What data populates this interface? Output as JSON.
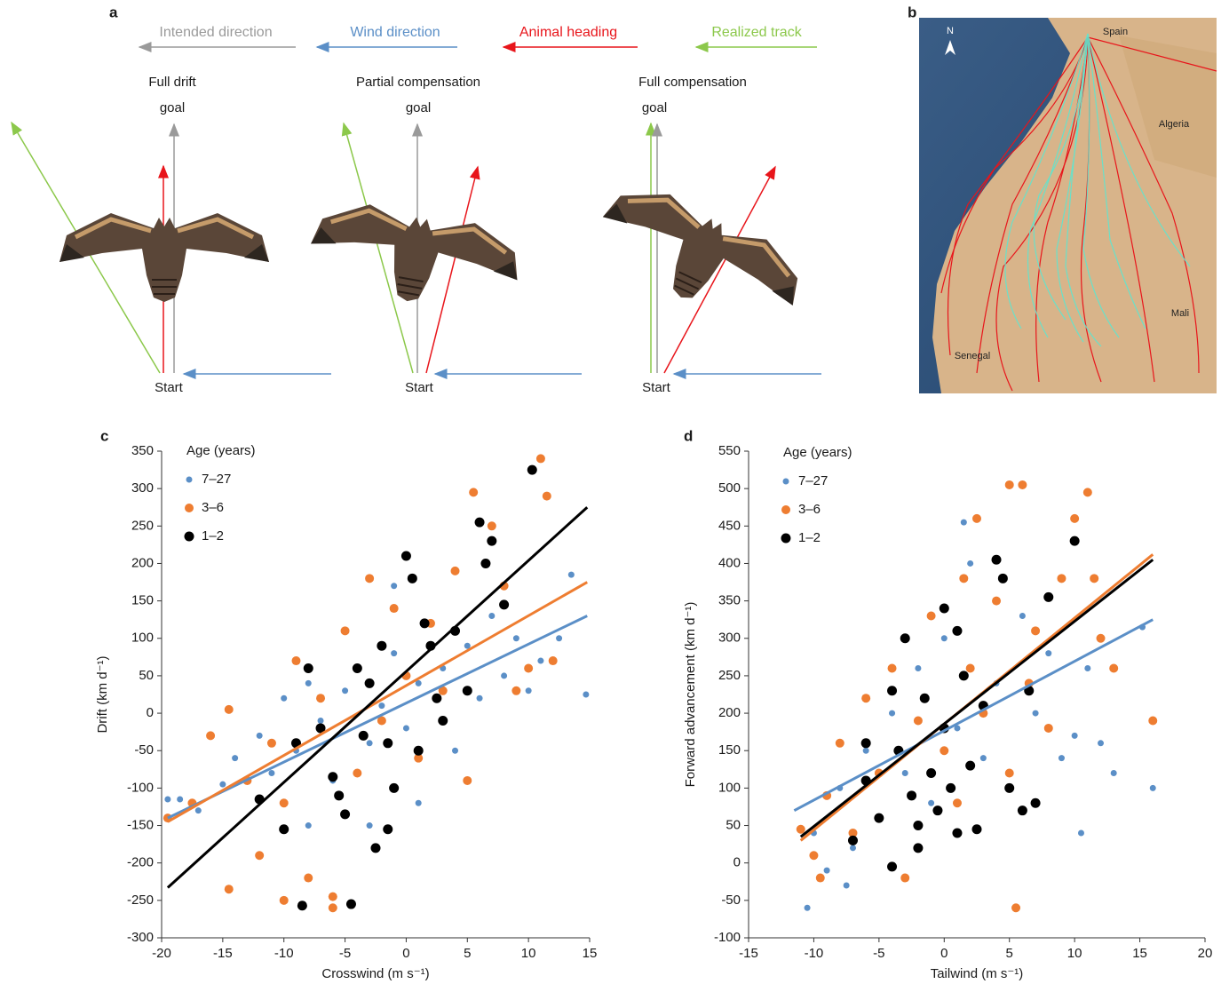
{
  "panel_a": {
    "label": "a",
    "legend": [
      "Intended direction",
      "Wind direction",
      "Animal heading",
      "Realized track"
    ],
    "scenarios": [
      {
        "title": "Full drift",
        "goal": "goal",
        "start": "Start"
      },
      {
        "title": "Partial compensation",
        "goal": "goal",
        "start": "Start"
      },
      {
        "title": "Full compensation",
        "goal": "goal",
        "start": "Start"
      }
    ]
  },
  "panel_b": {
    "label": "b",
    "north": "N",
    "places": [
      "Spain",
      "Algeria",
      "Mali",
      "Senegal"
    ]
  },
  "chart_data": [
    {
      "type": "scatter",
      "panel_label": "c",
      "x_label": "Crosswind (m s⁻¹)",
      "y_label": "Drift (km d⁻¹)",
      "legend_title": "Age (years)",
      "xlim": [
        -20,
        15
      ],
      "xticks": [
        -20,
        -15,
        -10,
        -5,
        0,
        5,
        10,
        15
      ],
      "ylim": [
        -300,
        350
      ],
      "yticks": [
        -300,
        -250,
        -200,
        -150,
        -100,
        -50,
        0,
        50,
        100,
        150,
        200,
        250,
        300,
        350
      ],
      "series": [
        {
          "name": "7–27",
          "color": "#5b8fc7",
          "x": [
            -19.5,
            -18.5,
            -17,
            -15,
            -14,
            -12,
            -11,
            -10,
            -9,
            -8,
            -7,
            -6,
            -5,
            -4,
            -3,
            -2,
            -1,
            0,
            1,
            2,
            3,
            4,
            5,
            6,
            7,
            8,
            9,
            10,
            11,
            12.5,
            13.5,
            14.7,
            -8,
            -3,
            1,
            -1
          ],
          "y": [
            -115,
            -115,
            -130,
            -95,
            -60,
            -30,
            -80,
            20,
            -50,
            40,
            -10,
            -90,
            30,
            60,
            -40,
            10,
            80,
            -20,
            40,
            120,
            60,
            -50,
            90,
            20,
            130,
            50,
            100,
            30,
            70,
            100,
            185,
            25,
            -150,
            -150,
            -120,
            170
          ],
          "fit": {
            "x": [
              -19.5,
              14.8
            ],
            "y": [
              -140,
              130
            ]
          }
        },
        {
          "name": "3–6",
          "color": "#ee7d31",
          "x": [
            -19.5,
            -17.5,
            -16,
            -14.5,
            -14.5,
            -13,
            -12,
            -11,
            -10,
            -9,
            -8,
            -7,
            -6,
            -5,
            -4,
            -3,
            -2,
            -1,
            0,
            1,
            2,
            3,
            4,
            5,
            5.5,
            7,
            8,
            9,
            10,
            11,
            11.5,
            12,
            -6,
            -10
          ],
          "y": [
            -140,
            -120,
            -30,
            -235,
            5,
            -90,
            -190,
            -40,
            -120,
            70,
            -220,
            20,
            -260,
            110,
            -80,
            180,
            -10,
            140,
            50,
            -60,
            120,
            30,
            190,
            -90,
            295,
            250,
            170,
            30,
            60,
            340,
            290,
            70,
            -245,
            -250
          ],
          "fit": {
            "x": [
              -19.5,
              14.8
            ],
            "y": [
              -145,
              175
            ]
          }
        },
        {
          "name": "1–2",
          "color": "#000000",
          "x": [
            -12,
            -10,
            -9,
            -8.5,
            -8,
            -7,
            -6,
            -5.5,
            -5,
            -4.5,
            -4,
            -3.5,
            -3,
            -2.5,
            -2,
            -1.5,
            -1,
            0,
            0.5,
            1,
            1.5,
            2,
            2.5,
            3,
            4,
            5,
            6,
            6.5,
            7,
            8,
            10.3,
            -1.5
          ],
          "y": [
            -115,
            -155,
            -40,
            -257,
            60,
            -20,
            -85,
            -110,
            -135,
            -255,
            60,
            -30,
            40,
            -180,
            90,
            -40,
            -100,
            210,
            180,
            -50,
            120,
            90,
            20,
            -10,
            110,
            30,
            255,
            200,
            230,
            145,
            325,
            -155
          ],
          "fit": {
            "x": [
              -19.5,
              14.8
            ],
            "y": [
              -233,
              275
            ]
          }
        }
      ]
    },
    {
      "type": "scatter",
      "panel_label": "d",
      "x_label": "Tailwind (m s⁻¹)",
      "y_label": "Forward advancement (km d⁻¹)",
      "legend_title": "Age (years)",
      "xlim": [
        -15,
        20
      ],
      "xticks": [
        -15,
        -10,
        -5,
        0,
        5,
        10,
        15,
        20
      ],
      "ylim": [
        -100,
        550
      ],
      "yticks": [
        -100,
        -50,
        0,
        50,
        100,
        150,
        200,
        250,
        300,
        350,
        400,
        450,
        500,
        550
      ],
      "series": [
        {
          "name": "7–27",
          "color": "#5b8fc7",
          "x": [
            -10.5,
            -10,
            -9,
            -8,
            -7.5,
            -7,
            -6,
            -5,
            -4,
            -3,
            -2,
            -1,
            0,
            1,
            2,
            3,
            4,
            5,
            6,
            7,
            8,
            9,
            10,
            10.5,
            11,
            12,
            13,
            15.2,
            16,
            1.5
          ],
          "y": [
            -60,
            40,
            -10,
            100,
            -30,
            20,
            150,
            60,
            200,
            120,
            260,
            80,
            300,
            180,
            400,
            140,
            240,
            100,
            330,
            200,
            280,
            140,
            170,
            40,
            260,
            160,
            120,
            315,
            100,
            455
          ],
          "fit": {
            "x": [
              -11.5,
              16
            ],
            "y": [
              70,
              325
            ]
          }
        },
        {
          "name": "3–6",
          "color": "#ee7d31",
          "x": [
            -11,
            -10,
            -9.5,
            -9,
            -8,
            -7,
            -6,
            -5,
            -4,
            -3,
            -2,
            -1,
            0,
            1,
            1.5,
            2,
            2.5,
            3,
            4,
            5,
            5,
            6,
            6.5,
            7,
            8,
            9,
            10,
            11,
            11.5,
            12,
            16,
            5.5,
            13
          ],
          "y": [
            45,
            10,
            -20,
            90,
            160,
            40,
            220,
            120,
            260,
            -20,
            190,
            330,
            150,
            80,
            380,
            260,
            460,
            200,
            350,
            505,
            120,
            505,
            240,
            310,
            180,
            380,
            460,
            495,
            380,
            300,
            190,
            -60,
            260
          ],
          "fit": {
            "x": [
              -11,
              16
            ],
            "y": [
              30,
              412
            ]
          }
        },
        {
          "name": "1–2",
          "color": "#000000",
          "x": [
            -7,
            -6,
            -5,
            -4,
            -4,
            -3.5,
            -3,
            -2.5,
            -2,
            -1.5,
            -1,
            -0.5,
            0,
            0,
            0.5,
            1,
            1.5,
            2,
            2.5,
            3,
            4,
            4.5,
            5,
            6,
            6.5,
            7,
            8,
            10,
            -6,
            -2,
            1
          ],
          "y": [
            30,
            110,
            60,
            -5,
            230,
            150,
            300,
            90,
            50,
            220,
            120,
            70,
            340,
            180,
            100,
            40,
            250,
            130,
            45,
            210,
            405,
            380,
            100,
            70,
            230,
            80,
            355,
            430,
            160,
            20,
            310
          ],
          "fit": {
            "x": [
              -11,
              16
            ],
            "y": [
              35,
              405
            ]
          }
        }
      ]
    }
  ]
}
